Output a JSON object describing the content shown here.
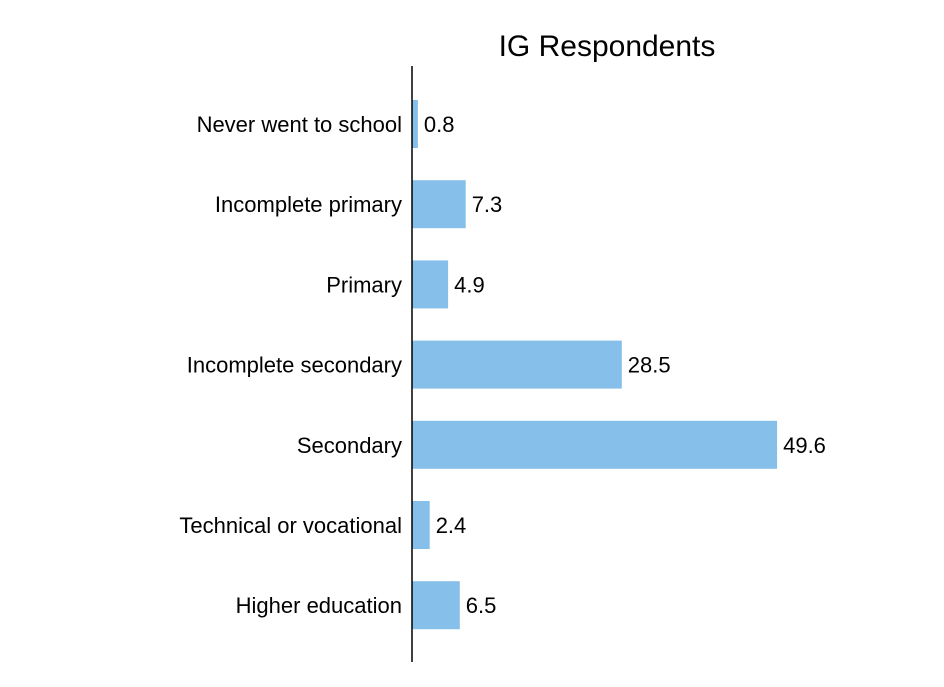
{
  "chart_data": {
    "type": "bar",
    "orientation": "horizontal",
    "title": "IG Respondents",
    "xlabel": "",
    "ylabel": "",
    "categories": [
      "Never went to school",
      "Incomplete primary",
      "Primary",
      "Incomplete secondary",
      "Secondary",
      "Technical or vocational",
      "Higher education"
    ],
    "values": [
      0.8,
      7.3,
      4.9,
      28.5,
      49.6,
      2.4,
      6.5
    ],
    "value_labels": [
      "0.8",
      "7.3",
      "4.9",
      "28.5",
      "49.6",
      "2.4",
      "6.5"
    ],
    "xlim": [
      0,
      55
    ],
    "grid": false,
    "legend": "none",
    "bar_color": "#85bfea",
    "axis_color": "#000000"
  }
}
